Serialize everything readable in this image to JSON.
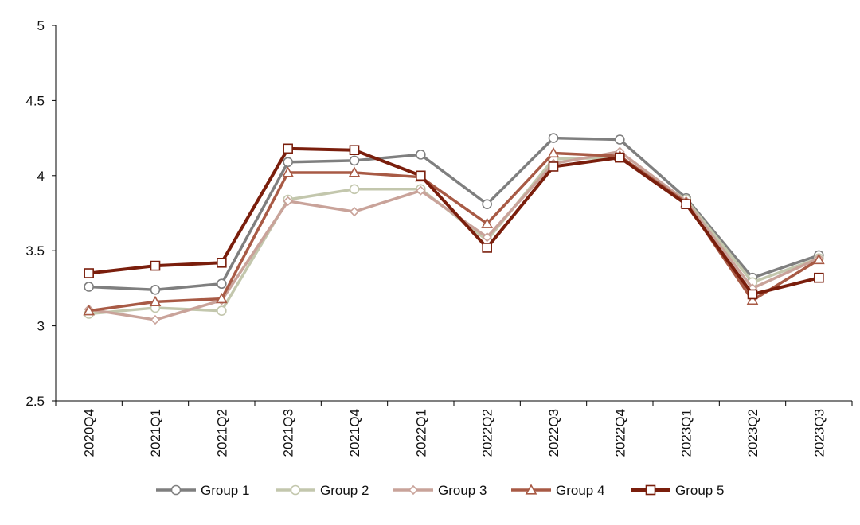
{
  "chart_data": {
    "type": "line",
    "title": "",
    "xlabel": "",
    "ylabel": "",
    "categories": [
      "2020Q4",
      "2021Q1",
      "2021Q2",
      "2021Q3",
      "2021Q4",
      "2022Q1",
      "2022Q2",
      "2022Q3",
      "2022Q4",
      "2023Q1",
      "2023Q2",
      "2023Q3"
    ],
    "ylim": [
      2.5,
      5
    ],
    "yticks": [
      "2.5",
      "3",
      "3.5",
      "4",
      "4.5",
      "5"
    ],
    "grid": false,
    "legend_position": "bottom",
    "series": [
      {
        "name": "Group 1",
        "color": "#7f7f7f",
        "marker": "circle",
        "values": [
          3.26,
          3.24,
          3.28,
          4.09,
          4.1,
          4.14,
          3.81,
          4.25,
          4.24,
          3.85,
          3.32,
          3.47
        ]
      },
      {
        "name": "Group 2",
        "color": "#c3c7ad",
        "marker": "circle",
        "values": [
          3.08,
          3.12,
          3.1,
          3.84,
          3.91,
          3.91,
          3.57,
          4.11,
          4.12,
          3.84,
          3.29,
          3.45
        ]
      },
      {
        "name": "Group 3",
        "color": "#c9a39a",
        "marker": "diamond",
        "values": [
          3.11,
          3.04,
          3.17,
          3.83,
          3.76,
          3.9,
          3.59,
          4.08,
          4.16,
          3.83,
          3.25,
          3.45
        ]
      },
      {
        "name": "Group 4",
        "color": "#a85a45",
        "marker": "triangle",
        "values": [
          3.1,
          3.16,
          3.18,
          4.02,
          4.02,
          3.99,
          3.68,
          4.15,
          4.13,
          3.82,
          3.17,
          3.44
        ]
      },
      {
        "name": "Group 5",
        "color": "#7a1e0c",
        "marker": "square",
        "values": [
          3.35,
          3.4,
          3.42,
          4.18,
          4.17,
          4.0,
          3.52,
          4.06,
          4.12,
          3.81,
          3.21,
          3.32
        ]
      }
    ]
  }
}
